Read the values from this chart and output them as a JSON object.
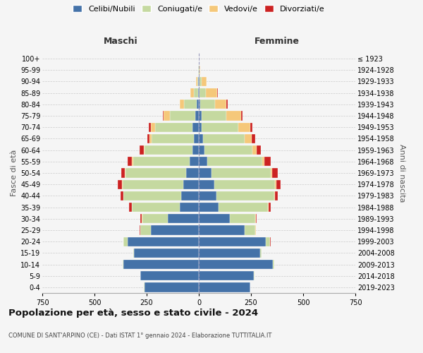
{
  "age_groups": [
    "0-4",
    "5-9",
    "10-14",
    "15-19",
    "20-24",
    "25-29",
    "30-34",
    "35-39",
    "40-44",
    "45-49",
    "50-54",
    "55-59",
    "60-64",
    "65-69",
    "70-74",
    "75-79",
    "80-84",
    "85-89",
    "90-94",
    "95-99",
    "100+"
  ],
  "birth_years": [
    "2019-2023",
    "2014-2018",
    "2009-2013",
    "2004-2008",
    "1999-2003",
    "1994-1998",
    "1989-1993",
    "1984-1988",
    "1979-1983",
    "1974-1978",
    "1969-1973",
    "1964-1968",
    "1959-1963",
    "1954-1958",
    "1949-1953",
    "1944-1948",
    "1939-1943",
    "1934-1938",
    "1929-1933",
    "1924-1928",
    "≤ 1923"
  ],
  "male": {
    "celibi": [
      260,
      280,
      360,
      310,
      340,
      230,
      150,
      90,
      85,
      75,
      60,
      45,
      30,
      25,
      30,
      18,
      10,
      4,
      2,
      1,
      0
    ],
    "coniugati": [
      2,
      2,
      5,
      5,
      20,
      50,
      120,
      230,
      275,
      290,
      290,
      270,
      230,
      200,
      180,
      120,
      60,
      20,
      5,
      1,
      0
    ],
    "vedovi": [
      0,
      0,
      0,
      0,
      1,
      1,
      2,
      2,
      2,
      2,
      5,
      5,
      5,
      10,
      20,
      30,
      20,
      15,
      5,
      1,
      0
    ],
    "divorziati": [
      0,
      0,
      0,
      0,
      2,
      4,
      8,
      12,
      12,
      20,
      18,
      20,
      18,
      12,
      10,
      5,
      2,
      1,
      0,
      0,
      0
    ]
  },
  "female": {
    "nubili": [
      245,
      265,
      355,
      295,
      320,
      220,
      150,
      95,
      85,
      75,
      60,
      40,
      28,
      20,
      15,
      12,
      8,
      4,
      2,
      1,
      0
    ],
    "coniugate": [
      2,
      2,
      5,
      5,
      20,
      50,
      120,
      235,
      275,
      290,
      285,
      265,
      230,
      200,
      175,
      120,
      70,
      30,
      10,
      2,
      0
    ],
    "vedove": [
      0,
      0,
      0,
      0,
      1,
      2,
      2,
      3,
      4,
      5,
      8,
      10,
      18,
      35,
      55,
      70,
      55,
      55,
      25,
      3,
      0
    ],
    "divorziate": [
      0,
      0,
      0,
      0,
      2,
      3,
      5,
      10,
      15,
      22,
      25,
      28,
      22,
      15,
      12,
      8,
      4,
      2,
      0,
      0,
      0
    ]
  },
  "colors": {
    "celibi_nubili": "#4472a8",
    "coniugati": "#c5d9a0",
    "vedovi": "#f5c87a",
    "divorziati": "#cc2222"
  },
  "title": "Popolazione per età, sesso e stato civile - 2024",
  "subtitle": "COMUNE DI SANT'ARPINO (CE) - Dati ISTAT 1° gennaio 2024 - Elaborazione TUTTITALIA.IT",
  "xlabel_left": "Maschi",
  "xlabel_right": "Femmine",
  "ylabel_left": "Fasce di età",
  "ylabel_right": "Anni di nascita",
  "xlim": 750,
  "background_color": "#f5f5f5",
  "grid_color": "#cccccc"
}
